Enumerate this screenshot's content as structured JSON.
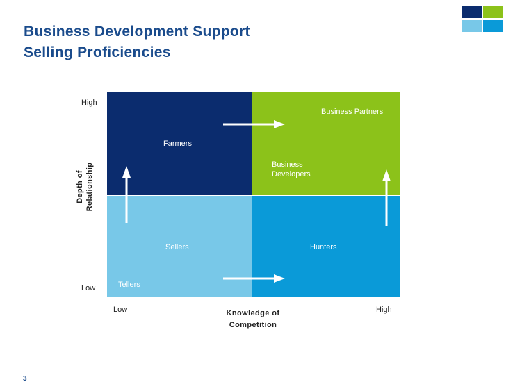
{
  "header": {
    "title_line1": "Business Development Support",
    "title_line2": "Selling Proficiencies"
  },
  "colors": {
    "brand_navy": "#0b2c6e",
    "brand_lime": "#8cc21a",
    "light_blue": "#78c8e8",
    "mid_blue": "#0a9ad8",
    "title_blue": "#1a4b8c"
  },
  "matrix": {
    "quadrants": [
      {
        "id": "farmers",
        "label": "Farmers",
        "color": "#0b2c6e"
      },
      {
        "id": "business-partners",
        "label": "Business Partners",
        "color": "#8cc21a"
      },
      {
        "id": "sellers",
        "label": "Sellers",
        "color": "#78c8e8"
      },
      {
        "id": "hunters",
        "label": "Hunters",
        "color": "#0a9ad8"
      }
    ],
    "extra_labels": {
      "business_developers_line1": "Business",
      "business_developers_line2": "Developers",
      "tellers": "Tellers"
    }
  },
  "axes": {
    "y_high": "High",
    "y_low": "Low",
    "y_title_line1": "Depth of",
    "y_title_line2": "Relationship",
    "x_low": "Low",
    "x_high": "High",
    "x_title_line1": "Knowledge of",
    "x_title_line2": "Competition"
  },
  "footer": {
    "page_number": "3"
  }
}
